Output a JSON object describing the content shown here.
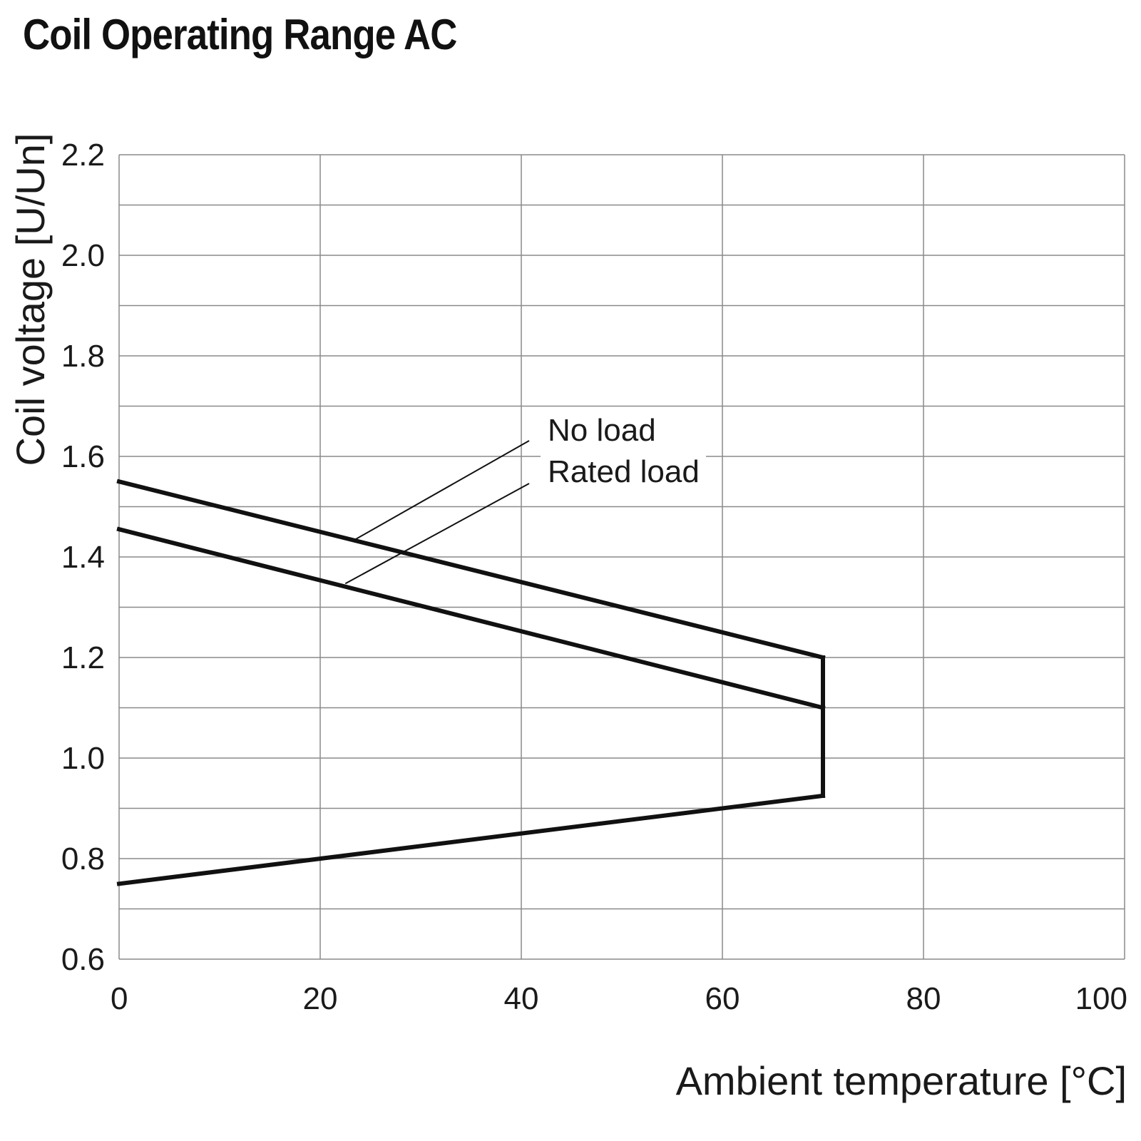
{
  "chart_data": {
    "type": "line",
    "title": "Coil Operating Range AC",
    "xlabel": "Ambient temperature [°C]",
    "ylabel": "Coil voltage [U/Un]",
    "xlim": [
      0,
      100
    ],
    "ylim": [
      0.6,
      2.2
    ],
    "x_ticks": [
      0,
      20,
      40,
      60,
      80,
      100
    ],
    "x_tick_labels": [
      "0",
      "20",
      "40",
      "60",
      "80",
      "100"
    ],
    "y_ticks": [
      0.6,
      0.8,
      1.0,
      1.2,
      1.4,
      1.6,
      1.8,
      2.0,
      2.2
    ],
    "y_tick_labels": [
      "0.6",
      "0.8",
      "1.0",
      "1.2",
      "1.4",
      "1.6",
      "1.8",
      "2.0",
      "2.2"
    ],
    "grid": true,
    "series": [
      {
        "name": "No load",
        "x": [
          0,
          70
        ],
        "y": [
          1.55,
          1.2
        ]
      },
      {
        "name": "Rated load",
        "x": [
          0,
          70
        ],
        "y": [
          1.455,
          1.1
        ]
      },
      {
        "x": [
          0,
          70
        ],
        "y": [
          0.75,
          0.925
        ]
      },
      {
        "x": [
          70,
          70
        ],
        "y": [
          0.925,
          1.2
        ]
      }
    ],
    "annotations": [
      {
        "text": "No load",
        "points_to_series": "No load",
        "x": 23.5,
        "y": 1.435
      },
      {
        "text": "Rated load",
        "points_to_series": "Rated load",
        "x": 22.5,
        "y": 1.347
      }
    ]
  }
}
